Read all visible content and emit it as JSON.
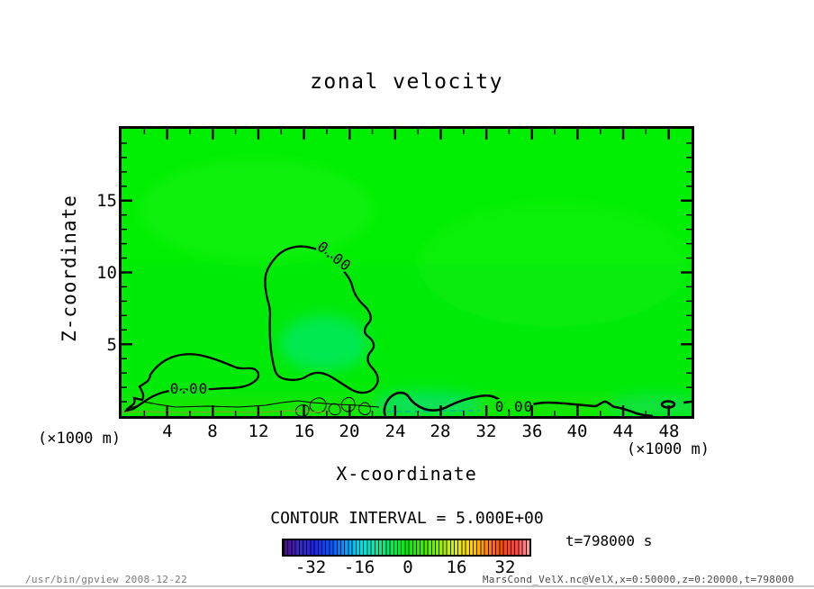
{
  "title": "zonal velocity",
  "axes": {
    "y_label": "Z-coordinate",
    "y_unit": "(×1000 m)",
    "y_ticks": [
      "15",
      "10",
      "5"
    ],
    "x_label": "X-coordinate",
    "x_unit": "(×1000 m)",
    "x_ticks": [
      "4",
      "8",
      "12",
      "16",
      "20",
      "24",
      "28",
      "32",
      "36",
      "40",
      "44",
      "48"
    ]
  },
  "contour": {
    "interval_label": "CONTOUR INTERVAL = 5.000E+00",
    "labels": [
      "0.00",
      "0.00",
      "0.00"
    ]
  },
  "colorbar": {
    "tick_labels": [
      "-32",
      "-16",
      "0",
      "16",
      "32"
    ]
  },
  "time_label": "t=798000 s",
  "footer": {
    "left": "/usr/bin/gpview  2008-12-22",
    "right": "MarsCond_VelX.nc@VelX,x=0:50000,z=0:20000,t=798000"
  },
  "chart_data": {
    "type": "heatmap",
    "subtype": "filled-contour",
    "title": "zonal velocity",
    "xlabel": "X-coordinate",
    "x_unit": "×1000 m",
    "ylabel": "Z-coordinate",
    "y_unit": "×1000 m",
    "xlim": [
      0,
      50
    ],
    "ylim": [
      0,
      20
    ],
    "x_ticks": [
      4,
      8,
      12,
      16,
      20,
      24,
      28,
      32,
      36,
      40,
      44,
      48
    ],
    "y_ticks": [
      5,
      10,
      15
    ],
    "contour_interval": 5.0,
    "contour_levels_visible": [
      0.0
    ],
    "contour_label_text": "0.00",
    "colorbar_tick_values": [
      -32,
      -16,
      0,
      16,
      32
    ],
    "colorbar_approx_range": [
      -42,
      42
    ],
    "time": "t=798000 s",
    "field_summary": "velocity field is near 0 (green) over the whole domain; 0.00 contours enclose a large pocket around x=13..23, z=3..12, a small hump near x=1..11, z<4, and a shallow near-surface band from x=23 to 50 with weak negative (cyan) patches below z=1"
  }
}
